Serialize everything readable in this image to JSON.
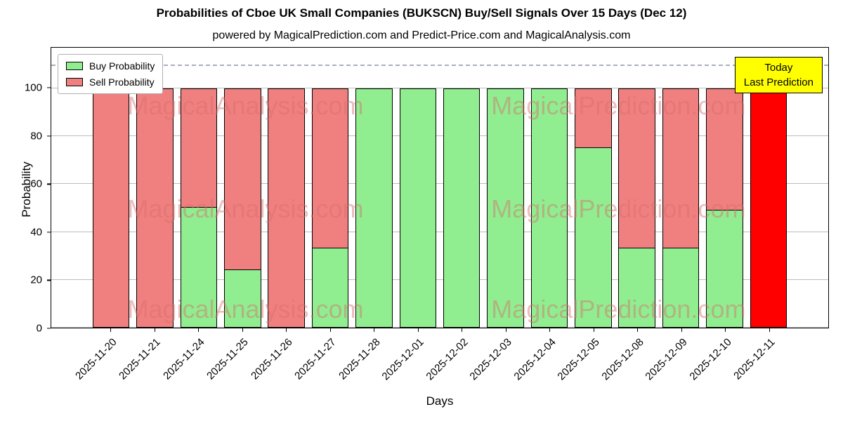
{
  "title": "Probabilities of Cboe UK Small Companies (BUKSCN) Buy/Sell Signals Over 15 Days (Dec 12)",
  "subtitle": "powered by MagicalPrediction.com and Predict-Price.com and MagicalAnalysis.com",
  "watermarks": [
    "MagicalAnalysis.com",
    "MagicalPrediction.com"
  ],
  "annotation": {
    "lines": [
      "Today",
      "Last Prediction"
    ],
    "bg_color": "#ffff00"
  },
  "colors": {
    "buy": "#90ee90",
    "sell": "#f08080",
    "today_bar": "#ff0000",
    "annotation_bg": "#ffff00",
    "watermark": "rgba(216,108,108,0.45)"
  },
  "chart_data": {
    "type": "bar",
    "stacked": true,
    "title": "Probabilities of Cboe UK Small Companies (BUKSCN) Buy/Sell Signals Over 15 Days (Dec 12)",
    "xlabel": "Days",
    "ylabel": "Probability",
    "ylim": [
      0,
      117
    ],
    "yticks": [
      0,
      20,
      40,
      60,
      80,
      100
    ],
    "grid": true,
    "legend_position": "upper left",
    "dashed_line_y": 110,
    "categories": [
      "2025-11-20",
      "2025-11-21",
      "2025-11-24",
      "2025-11-25",
      "2025-11-26",
      "2025-11-27",
      "2025-11-28",
      "2025-12-01",
      "2025-12-02",
      "2025-12-03",
      "2025-12-04",
      "2025-12-05",
      "2025-12-08",
      "2025-12-09",
      "2025-12-10",
      "2025-12-11"
    ],
    "series": [
      {
        "name": "Buy Probability",
        "color": "#90ee90",
        "values": [
          0,
          0,
          50,
          24,
          0,
          33,
          100,
          100,
          100,
          100,
          100,
          75,
          33,
          33,
          49,
          0
        ]
      },
      {
        "name": "Sell Probability",
        "color": "#f08080",
        "values": [
          100,
          100,
          50,
          76,
          100,
          67,
          0,
          0,
          0,
          0,
          0,
          25,
          67,
          67,
          51,
          100
        ]
      }
    ],
    "today": {
      "index": 15,
      "color": "#ff0000"
    }
  }
}
